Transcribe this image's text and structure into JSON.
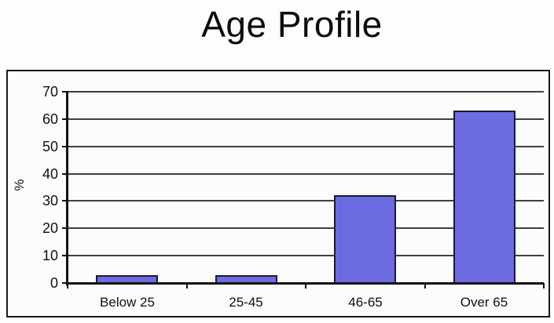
{
  "chart_data": {
    "type": "bar",
    "title": "Age Profile",
    "xlabel": "",
    "ylabel": "%",
    "categories": [
      "Below 25",
      "25-45",
      "46-65",
      "Over 65"
    ],
    "values": [
      3,
      3,
      32,
      63
    ],
    "ylim": [
      0,
      70
    ],
    "yticks": [
      0,
      10,
      20,
      30,
      40,
      50,
      60,
      70
    ],
    "grid": true,
    "legend": "none",
    "bar_fill_color": "#6C6BE0",
    "bar_border_color": "#1A1A30",
    "gridline_color": "#3F3F3F",
    "axis_color": "#111111",
    "chart_border_color": "#1A1A1A"
  }
}
